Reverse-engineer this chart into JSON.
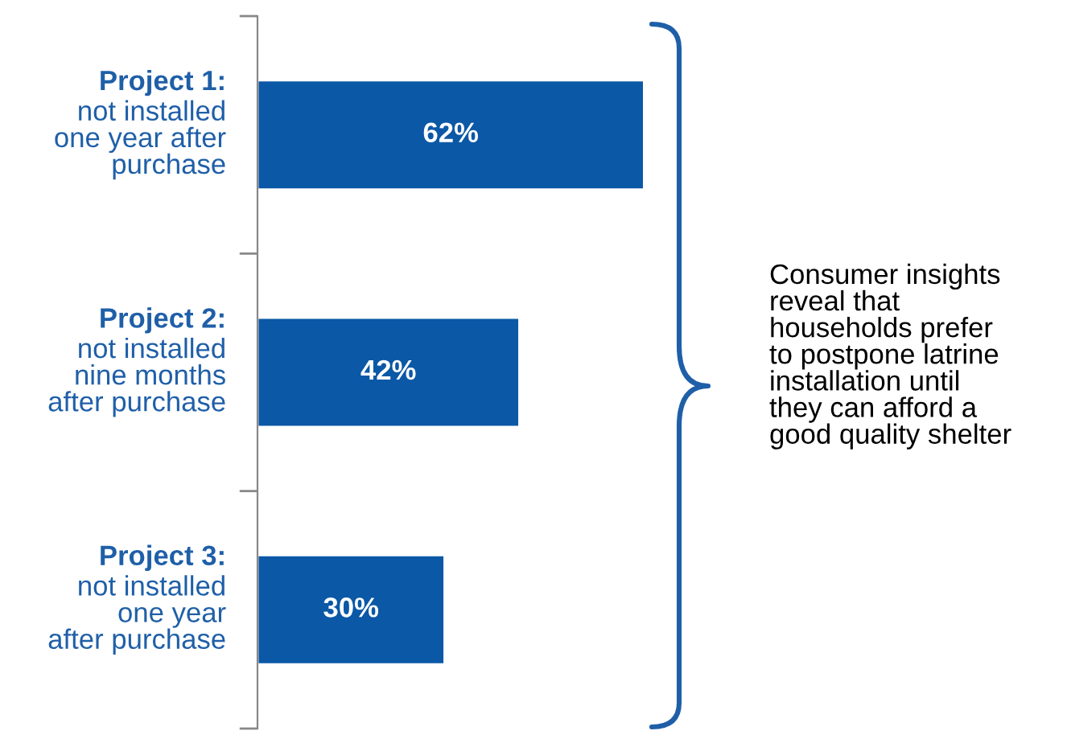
{
  "chart_data": {
    "type": "bar",
    "orientation": "horizontal",
    "categories": [
      "Project 1:\nnot installed\none year after\npurchase",
      "Project 2:\nnot installed\nnine months\nafter purchase",
      "Project 3:\nnot installed\none year\nafter purchase"
    ],
    "values": [
      62,
      42,
      30
    ],
    "color": "#0b58a6",
    "data_labels": true,
    "value_labels": [
      "62%",
      "42%",
      "30%"
    ],
    "annotations": [
      "Consumer insights\nreveal that\nhouseholds prefer\nto postpone latrine\ninstallation until\nthey can afford a\ngood quality shelter"
    ]
  }
}
